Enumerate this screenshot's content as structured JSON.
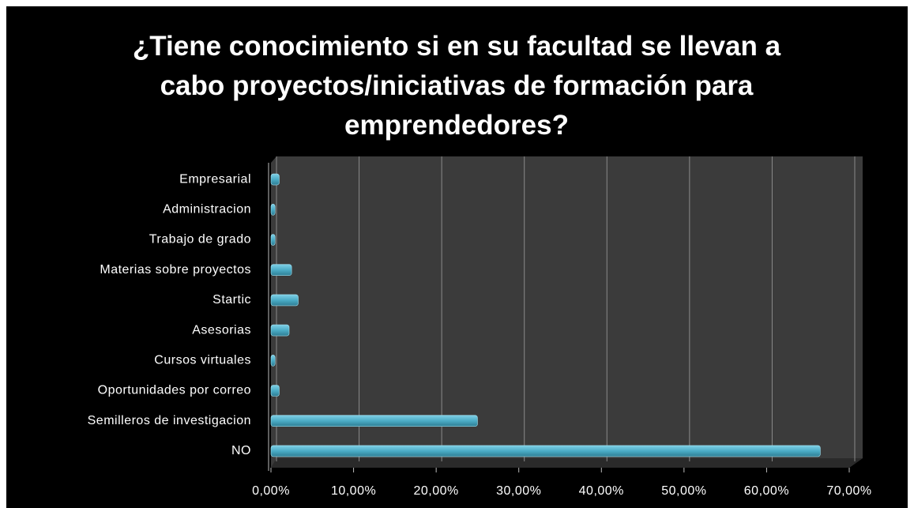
{
  "chart_data": {
    "type": "bar",
    "orientation": "horizontal",
    "title": "¿Tiene conocimiento si en su facultad se llevan a cabo proyectos/iniciativas de formación para emprendedores?",
    "categories": [
      "Empresarial",
      "Administracion",
      "Trabajo de grado",
      "Materias sobre proyectos",
      "Startic",
      "Asesorias",
      "Cursos virtuales",
      "Oportunidades por correo",
      "Semilleros de investigacion",
      "NO"
    ],
    "values": [
      1,
      0.5,
      0.5,
      2.5,
      3.3,
      2.2,
      0.5,
      1,
      25,
      66.5
    ],
    "color": "#4bacc6",
    "xlim": [
      0,
      70
    ],
    "xticks": [
      {
        "value": 0,
        "label": "0,00%"
      },
      {
        "value": 10,
        "label": "10,00%"
      },
      {
        "value": 20,
        "label": "20,00%"
      },
      {
        "value": 30,
        "label": "30,00%"
      },
      {
        "value": 40,
        "label": "40,00%"
      },
      {
        "value": 50,
        "label": "50,00%"
      },
      {
        "value": 60,
        "label": "60,00%"
      },
      {
        "value": 70,
        "label": "70,00%"
      }
    ],
    "grid": true
  }
}
